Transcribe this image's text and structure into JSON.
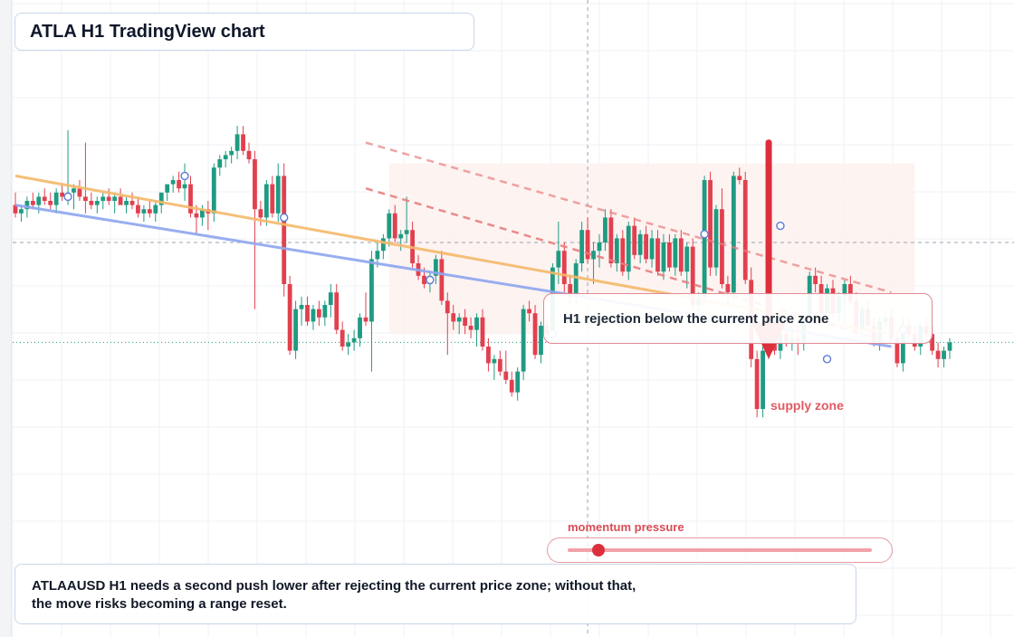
{
  "title": "ATLA H1 TradingView chart",
  "annotation": "H1 rejection below the current price zone",
  "supply_label": "supply zone",
  "momentum": {
    "label": "momentum pressure",
    "level": 0.1
  },
  "note": {
    "line1": "ATLAAUSD H1 needs a second push lower after rejecting the current price zone; without that,",
    "line2": "the move risks becoming a range reset."
  },
  "colors": {
    "bull": "#1f9b82",
    "bear": "#e2404f",
    "trend_orange": "#f5b96a",
    "trend_blue": "#8ea6ef",
    "dashed_red": "#e97e7e",
    "arrow": "#dc2f3b",
    "zone_fill": "#fdf2ef"
  },
  "chart_data": {
    "type": "candlestick",
    "timeframe": "H1",
    "grid": true,
    "ylim": [
      0,
      100
    ],
    "current_price": 46.0,
    "candles": [
      {
        "i": 0,
        "o": 79,
        "h": 82,
        "l": 76,
        "c": 77
      },
      {
        "i": 1,
        "o": 77,
        "h": 79,
        "l": 75,
        "c": 78
      },
      {
        "i": 2,
        "o": 78,
        "h": 81,
        "l": 76,
        "c": 80
      },
      {
        "i": 3,
        "o": 80,
        "h": 82,
        "l": 78,
        "c": 79
      },
      {
        "i": 4,
        "o": 79,
        "h": 82,
        "l": 77,
        "c": 81
      },
      {
        "i": 5,
        "o": 81,
        "h": 83,
        "l": 79,
        "c": 80
      },
      {
        "i": 6,
        "o": 80,
        "h": 82,
        "l": 78,
        "c": 79
      },
      {
        "i": 7,
        "o": 79,
        "h": 83,
        "l": 77,
        "c": 82
      },
      {
        "i": 8,
        "o": 82,
        "h": 84,
        "l": 80,
        "c": 81
      },
      {
        "i": 9,
        "o": 81,
        "h": 97,
        "l": 79,
        "c": 82
      },
      {
        "i": 10,
        "o": 82,
        "h": 84,
        "l": 78,
        "c": 83
      },
      {
        "i": 11,
        "o": 83,
        "h": 85,
        "l": 80,
        "c": 81
      },
      {
        "i": 12,
        "o": 81,
        "h": 94,
        "l": 77,
        "c": 80
      },
      {
        "i": 13,
        "o": 80,
        "h": 82,
        "l": 78,
        "c": 79
      },
      {
        "i": 14,
        "o": 79,
        "h": 81,
        "l": 77,
        "c": 80
      },
      {
        "i": 15,
        "o": 80,
        "h": 82,
        "l": 78,
        "c": 81
      },
      {
        "i": 16,
        "o": 81,
        "h": 83,
        "l": 79,
        "c": 80
      },
      {
        "i": 17,
        "o": 80,
        "h": 82,
        "l": 77,
        "c": 81
      },
      {
        "i": 18,
        "o": 81,
        "h": 83,
        "l": 79,
        "c": 79
      },
      {
        "i": 19,
        "o": 79,
        "h": 81,
        "l": 77,
        "c": 80
      },
      {
        "i": 20,
        "o": 80,
        "h": 82,
        "l": 78,
        "c": 79
      },
      {
        "i": 21,
        "o": 79,
        "h": 81,
        "l": 76,
        "c": 77
      },
      {
        "i": 22,
        "o": 77,
        "h": 79,
        "l": 75,
        "c": 78
      },
      {
        "i": 23,
        "o": 78,
        "h": 80,
        "l": 76,
        "c": 77
      },
      {
        "i": 24,
        "o": 77,
        "h": 80,
        "l": 75,
        "c": 79
      },
      {
        "i": 25,
        "o": 79,
        "h": 81,
        "l": 77,
        "c": 82
      },
      {
        "i": 26,
        "o": 82,
        "h": 84,
        "l": 80,
        "c": 84
      },
      {
        "i": 27,
        "o": 84,
        "h": 86,
        "l": 82,
        "c": 85
      },
      {
        "i": 28,
        "o": 85,
        "h": 87,
        "l": 82,
        "c": 83
      },
      {
        "i": 29,
        "o": 83,
        "h": 89,
        "l": 80,
        "c": 84
      },
      {
        "i": 30,
        "o": 84,
        "h": 86,
        "l": 76,
        "c": 77
      },
      {
        "i": 31,
        "o": 77,
        "h": 79,
        "l": 72,
        "c": 76
      },
      {
        "i": 32,
        "o": 76,
        "h": 79,
        "l": 74,
        "c": 78
      },
      {
        "i": 33,
        "o": 78,
        "h": 80,
        "l": 73,
        "c": 77
      },
      {
        "i": 34,
        "o": 77,
        "h": 89,
        "l": 75,
        "c": 88
      },
      {
        "i": 35,
        "o": 88,
        "h": 91,
        "l": 86,
        "c": 90
      },
      {
        "i": 36,
        "o": 90,
        "h": 92,
        "l": 88,
        "c": 91
      },
      {
        "i": 37,
        "o": 91,
        "h": 93,
        "l": 89,
        "c": 92
      },
      {
        "i": 38,
        "o": 92,
        "h": 98,
        "l": 90,
        "c": 96
      },
      {
        "i": 39,
        "o": 96,
        "h": 98,
        "l": 91,
        "c": 92
      },
      {
        "i": 40,
        "o": 92,
        "h": 94,
        "l": 89,
        "c": 90
      },
      {
        "i": 41,
        "o": 90,
        "h": 92,
        "l": 54,
        "c": 78
      },
      {
        "i": 42,
        "o": 78,
        "h": 80,
        "l": 74,
        "c": 76
      },
      {
        "i": 43,
        "o": 76,
        "h": 85,
        "l": 74,
        "c": 84
      },
      {
        "i": 44,
        "o": 84,
        "h": 86,
        "l": 76,
        "c": 77
      },
      {
        "i": 45,
        "o": 77,
        "h": 89,
        "l": 75,
        "c": 86
      },
      {
        "i": 46,
        "o": 86,
        "h": 89,
        "l": 57,
        "c": 60
      },
      {
        "i": 47,
        "o": 60,
        "h": 62,
        "l": 43,
        "c": 44
      },
      {
        "i": 48,
        "o": 44,
        "h": 56,
        "l": 42,
        "c": 54
      },
      {
        "i": 49,
        "o": 54,
        "h": 57,
        "l": 50,
        "c": 55
      },
      {
        "i": 50,
        "o": 55,
        "h": 57,
        "l": 50,
        "c": 51
      },
      {
        "i": 51,
        "o": 51,
        "h": 55,
        "l": 49,
        "c": 54
      },
      {
        "i": 52,
        "o": 54,
        "h": 56,
        "l": 50,
        "c": 52
      },
      {
        "i": 53,
        "o": 52,
        "h": 56,
        "l": 50,
        "c": 55
      },
      {
        "i": 54,
        "o": 55,
        "h": 60,
        "l": 52,
        "c": 58
      },
      {
        "i": 55,
        "o": 58,
        "h": 60,
        "l": 48,
        "c": 49
      },
      {
        "i": 56,
        "o": 49,
        "h": 51,
        "l": 44,
        "c": 45
      },
      {
        "i": 57,
        "o": 45,
        "h": 48,
        "l": 43,
        "c": 46
      },
      {
        "i": 58,
        "o": 46,
        "h": 49,
        "l": 44,
        "c": 47
      },
      {
        "i": 59,
        "o": 47,
        "h": 53,
        "l": 45,
        "c": 52
      },
      {
        "i": 60,
        "o": 52,
        "h": 58,
        "l": 50,
        "c": 51
      },
      {
        "i": 61,
        "o": 51,
        "h": 68,
        "l": 39,
        "c": 66
      },
      {
        "i": 62,
        "o": 66,
        "h": 70,
        "l": 64,
        "c": 68
      },
      {
        "i": 63,
        "o": 68,
        "h": 72,
        "l": 66,
        "c": 71
      },
      {
        "i": 64,
        "o": 71,
        "h": 78,
        "l": 69,
        "c": 77
      },
      {
        "i": 65,
        "o": 77,
        "h": 79,
        "l": 70,
        "c": 71
      },
      {
        "i": 66,
        "o": 71,
        "h": 73,
        "l": 68,
        "c": 72
      },
      {
        "i": 67,
        "o": 72,
        "h": 81,
        "l": 70,
        "c": 73
      },
      {
        "i": 68,
        "o": 73,
        "h": 75,
        "l": 64,
        "c": 65
      },
      {
        "i": 69,
        "o": 65,
        "h": 67,
        "l": 61,
        "c": 62
      },
      {
        "i": 70,
        "o": 62,
        "h": 64,
        "l": 59,
        "c": 60
      },
      {
        "i": 71,
        "o": 60,
        "h": 63,
        "l": 58,
        "c": 62
      },
      {
        "i": 72,
        "o": 62,
        "h": 67,
        "l": 60,
        "c": 66
      },
      {
        "i": 73,
        "o": 66,
        "h": 68,
        "l": 55,
        "c": 56
      },
      {
        "i": 74,
        "o": 56,
        "h": 58,
        "l": 43,
        "c": 53
      },
      {
        "i": 75,
        "o": 53,
        "h": 55,
        "l": 49,
        "c": 51
      },
      {
        "i": 76,
        "o": 51,
        "h": 53,
        "l": 48,
        "c": 52
      },
      {
        "i": 77,
        "o": 52,
        "h": 54,
        "l": 48,
        "c": 50
      },
      {
        "i": 78,
        "o": 50,
        "h": 52,
        "l": 47,
        "c": 49
      },
      {
        "i": 79,
        "o": 49,
        "h": 53,
        "l": 45,
        "c": 52
      },
      {
        "i": 80,
        "o": 52,
        "h": 54,
        "l": 44,
        "c": 45
      },
      {
        "i": 81,
        "o": 45,
        "h": 47,
        "l": 39,
        "c": 41
      },
      {
        "i": 82,
        "o": 41,
        "h": 43,
        "l": 37,
        "c": 42
      },
      {
        "i": 83,
        "o": 42,
        "h": 44,
        "l": 38,
        "c": 39
      },
      {
        "i": 84,
        "o": 39,
        "h": 44,
        "l": 36,
        "c": 37
      },
      {
        "i": 85,
        "o": 37,
        "h": 39,
        "l": 33,
        "c": 34
      },
      {
        "i": 86,
        "o": 34,
        "h": 40,
        "l": 32,
        "c": 39
      },
      {
        "i": 87,
        "o": 39,
        "h": 55,
        "l": 37,
        "c": 54
      },
      {
        "i": 88,
        "o": 54,
        "h": 56,
        "l": 51,
        "c": 53
      },
      {
        "i": 89,
        "o": 53,
        "h": 55,
        "l": 42,
        "c": 43
      },
      {
        "i": 90,
        "o": 43,
        "h": 51,
        "l": 41,
        "c": 50
      },
      {
        "i": 91,
        "o": 50,
        "h": 52,
        "l": 46,
        "c": 48
      },
      {
        "i": 92,
        "o": 48,
        "h": 65,
        "l": 46,
        "c": 64
      },
      {
        "i": 93,
        "o": 64,
        "h": 75,
        "l": 60,
        "c": 68
      },
      {
        "i": 94,
        "o": 68,
        "h": 70,
        "l": 58,
        "c": 60
      },
      {
        "i": 95,
        "o": 60,
        "h": 62,
        "l": 55,
        "c": 57
      },
      {
        "i": 96,
        "o": 57,
        "h": 66,
        "l": 55,
        "c": 65
      },
      {
        "i": 97,
        "o": 65,
        "h": 75,
        "l": 63,
        "c": 73
      },
      {
        "i": 98,
        "o": 73,
        "h": 76,
        "l": 65,
        "c": 66
      },
      {
        "i": 99,
        "o": 66,
        "h": 70,
        "l": 60,
        "c": 68
      },
      {
        "i": 100,
        "o": 68,
        "h": 72,
        "l": 64,
        "c": 70
      },
      {
        "i": 101,
        "o": 70,
        "h": 78,
        "l": 68,
        "c": 76
      },
      {
        "i": 102,
        "o": 76,
        "h": 78,
        "l": 64,
        "c": 65
      },
      {
        "i": 103,
        "o": 65,
        "h": 72,
        "l": 63,
        "c": 71
      },
      {
        "i": 104,
        "o": 71,
        "h": 73,
        "l": 62,
        "c": 63
      },
      {
        "i": 105,
        "o": 63,
        "h": 75,
        "l": 61,
        "c": 74
      },
      {
        "i": 106,
        "o": 74,
        "h": 76,
        "l": 66,
        "c": 67
      },
      {
        "i": 107,
        "o": 67,
        "h": 73,
        "l": 65,
        "c": 72
      },
      {
        "i": 108,
        "o": 72,
        "h": 74,
        "l": 65,
        "c": 66
      },
      {
        "i": 109,
        "o": 66,
        "h": 73,
        "l": 64,
        "c": 71
      },
      {
        "i": 110,
        "o": 71,
        "h": 73,
        "l": 62,
        "c": 63
      },
      {
        "i": 111,
        "o": 63,
        "h": 72,
        "l": 61,
        "c": 70
      },
      {
        "i": 112,
        "o": 70,
        "h": 72,
        "l": 63,
        "c": 64
      },
      {
        "i": 113,
        "o": 64,
        "h": 72,
        "l": 62,
        "c": 71
      },
      {
        "i": 114,
        "o": 71,
        "h": 73,
        "l": 62,
        "c": 63
      },
      {
        "i": 115,
        "o": 63,
        "h": 70,
        "l": 59,
        "c": 69
      },
      {
        "i": 116,
        "o": 69,
        "h": 71,
        "l": 54,
        "c": 55
      },
      {
        "i": 117,
        "o": 55,
        "h": 58,
        "l": 52,
        "c": 57
      },
      {
        "i": 118,
        "o": 57,
        "h": 86,
        "l": 55,
        "c": 85
      },
      {
        "i": 119,
        "o": 85,
        "h": 87,
        "l": 62,
        "c": 64
      },
      {
        "i": 120,
        "o": 64,
        "h": 79,
        "l": 62,
        "c": 78
      },
      {
        "i": 121,
        "o": 78,
        "h": 83,
        "l": 59,
        "c": 60
      },
      {
        "i": 122,
        "o": 60,
        "h": 62,
        "l": 55,
        "c": 58
      },
      {
        "i": 123,
        "o": 58,
        "h": 87,
        "l": 56,
        "c": 86
      },
      {
        "i": 124,
        "o": 86,
        "h": 88,
        "l": 84,
        "c": 85
      },
      {
        "i": 125,
        "o": 85,
        "h": 87,
        "l": 60,
        "c": 61
      },
      {
        "i": 126,
        "o": 61,
        "h": 64,
        "l": 40,
        "c": 42
      },
      {
        "i": 127,
        "o": 42,
        "h": 44,
        "l": 28,
        "c": 30
      },
      {
        "i": 128,
        "o": 30,
        "h": 45,
        "l": 28,
        "c": 44
      },
      {
        "i": 129,
        "o": 44,
        "h": 50,
        "l": 42,
        "c": 49
      },
      {
        "i": 130,
        "o": 49,
        "h": 51,
        "l": 43,
        "c": 44
      },
      {
        "i": 131,
        "o": 44,
        "h": 50,
        "l": 42,
        "c": 48
      },
      {
        "i": 132,
        "o": 48,
        "h": 50,
        "l": 45,
        "c": 46
      },
      {
        "i": 133,
        "o": 46,
        "h": 52,
        "l": 44,
        "c": 47
      },
      {
        "i": 134,
        "o": 47,
        "h": 50,
        "l": 43,
        "c": 46
      },
      {
        "i": 135,
        "o": 46,
        "h": 53,
        "l": 44,
        "c": 52
      },
      {
        "i": 136,
        "o": 52,
        "h": 63,
        "l": 50,
        "c": 62
      },
      {
        "i": 137,
        "o": 62,
        "h": 64,
        "l": 58,
        "c": 60
      },
      {
        "i": 138,
        "o": 60,
        "h": 62,
        "l": 52,
        "c": 53
      },
      {
        "i": 139,
        "o": 53,
        "h": 60,
        "l": 51,
        "c": 59
      },
      {
        "i": 140,
        "o": 59,
        "h": 61,
        "l": 52,
        "c": 53
      },
      {
        "i": 141,
        "o": 53,
        "h": 58,
        "l": 51,
        "c": 57
      },
      {
        "i": 142,
        "o": 57,
        "h": 61,
        "l": 50,
        "c": 60
      },
      {
        "i": 143,
        "o": 60,
        "h": 62,
        "l": 55,
        "c": 56
      },
      {
        "i": 144,
        "o": 56,
        "h": 58,
        "l": 48,
        "c": 49
      },
      {
        "i": 145,
        "o": 49,
        "h": 55,
        "l": 47,
        "c": 54
      },
      {
        "i": 146,
        "o": 54,
        "h": 56,
        "l": 49,
        "c": 50
      },
      {
        "i": 147,
        "o": 50,
        "h": 52,
        "l": 45,
        "c": 46
      },
      {
        "i": 148,
        "o": 46,
        "h": 52,
        "l": 44,
        "c": 51
      },
      {
        "i": 149,
        "o": 51,
        "h": 54,
        "l": 49,
        "c": 52
      },
      {
        "i": 150,
        "o": 52,
        "h": 54,
        "l": 46,
        "c": 47
      },
      {
        "i": 151,
        "o": 47,
        "h": 49,
        "l": 40,
        "c": 41
      },
      {
        "i": 152,
        "o": 41,
        "h": 52,
        "l": 39,
        "c": 50
      },
      {
        "i": 153,
        "o": 50,
        "h": 52,
        "l": 47,
        "c": 48
      },
      {
        "i": 154,
        "o": 48,
        "h": 50,
        "l": 44,
        "c": 45
      },
      {
        "i": 155,
        "o": 45,
        "h": 51,
        "l": 43,
        "c": 50
      },
      {
        "i": 156,
        "o": 50,
        "h": 52,
        "l": 47,
        "c": 48
      },
      {
        "i": 157,
        "o": 48,
        "h": 50,
        "l": 43,
        "c": 44
      },
      {
        "i": 158,
        "o": 44,
        "h": 46,
        "l": 40,
        "c": 42
      },
      {
        "i": 159,
        "o": 42,
        "h": 45,
        "l": 40,
        "c": 44
      },
      {
        "i": 160,
        "o": 44,
        "h": 47,
        "l": 42,
        "c": 46
      }
    ],
    "trendlines": [
      {
        "style": "solid",
        "color": "orange",
        "from": [
          0,
          86
        ],
        "to": [
          150,
          48
        ]
      },
      {
        "style": "solid",
        "color": "blue",
        "from": [
          0,
          79
        ],
        "to": [
          150,
          45
        ]
      },
      {
        "style": "dashed",
        "color": "red",
        "from": [
          60,
          94
        ],
        "to": [
          150,
          58
        ]
      },
      {
        "style": "dashed",
        "color": "red",
        "from": [
          60,
          83
        ],
        "to": [
          150,
          46
        ]
      }
    ],
    "pivots": [
      {
        "i": 9,
        "v": 81
      },
      {
        "i": 29,
        "v": 86
      },
      {
        "i": 46,
        "v": 76
      },
      {
        "i": 71,
        "v": 61
      },
      {
        "i": 92,
        "v": 48
      },
      {
        "i": 118,
        "v": 72
      },
      {
        "i": 131,
        "v": 74
      },
      {
        "i": 139,
        "v": 42
      },
      {
        "i": 152,
        "v": 49
      }
    ],
    "zone": {
      "from_i": 64,
      "to_i": 154,
      "top": 89,
      "bottom": 48
    },
    "arrow": {
      "i": 129,
      "from": 94,
      "to": 42
    },
    "crosshair": {
      "i": 98,
      "v": 70
    }
  }
}
